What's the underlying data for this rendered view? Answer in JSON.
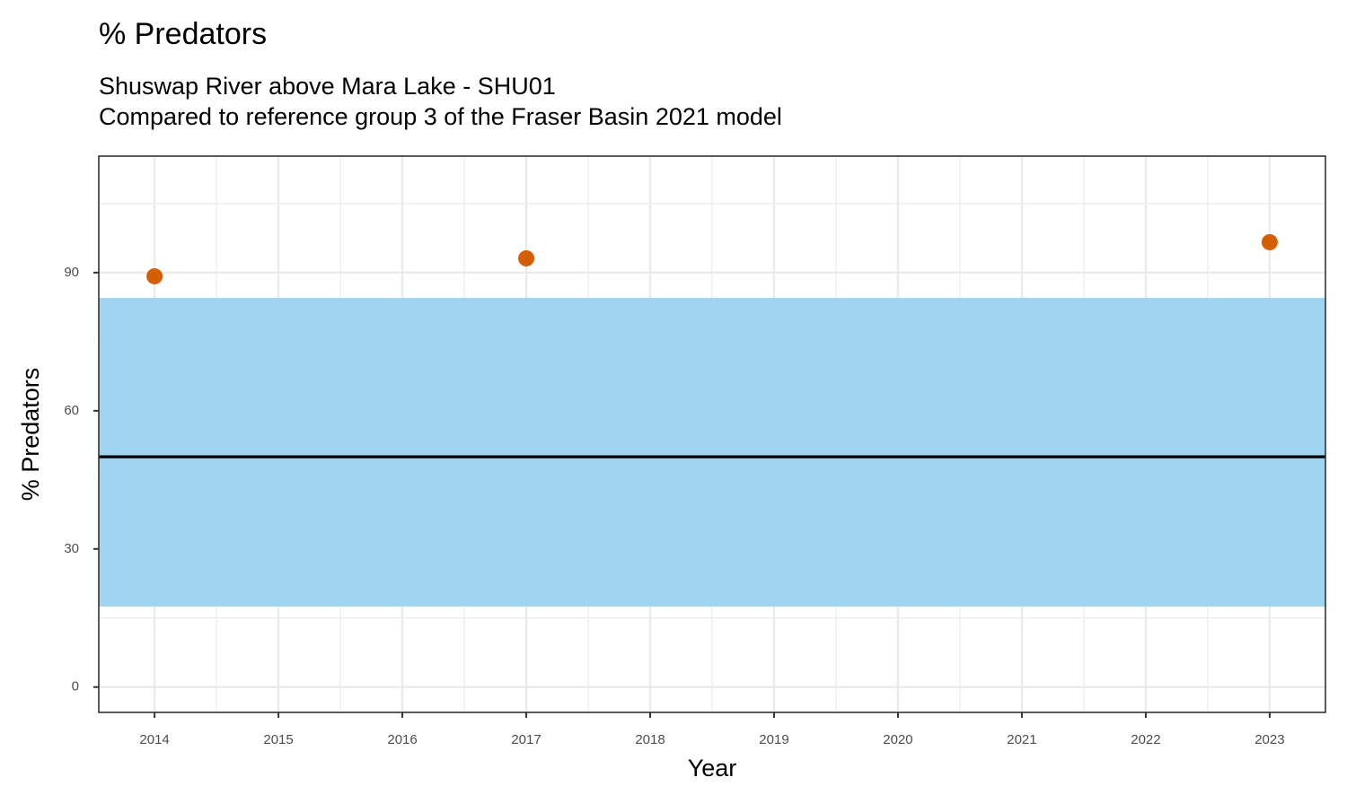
{
  "chart_data": {
    "type": "scatter",
    "title": "% Predators",
    "subtitle": [
      "Shuswap River above Mara Lake - SHU01",
      "Compared to reference group 3 of the Fraser Basin 2021 model"
    ],
    "x_label": "Year",
    "y_label": "% Predators",
    "x": [
      2014,
      2017,
      2023
    ],
    "values": [
      89.2,
      93.1,
      96.6
    ],
    "color": "#d55e00",
    "reference_band": [
      17.5,
      84.5
    ],
    "band_color": "#9ad3f0",
    "reference_median": 50,
    "median_color": "#000000",
    "xlim": [
      2013.55,
      2023.45
    ],
    "xticks": [
      2014,
      2015,
      2016,
      2017,
      2018,
      2019,
      2020,
      2021,
      2022,
      2023
    ],
    "ylim": [
      -5.5,
      115.3
    ],
    "yticks": [
      0,
      30,
      60,
      90
    ],
    "grid": true
  }
}
